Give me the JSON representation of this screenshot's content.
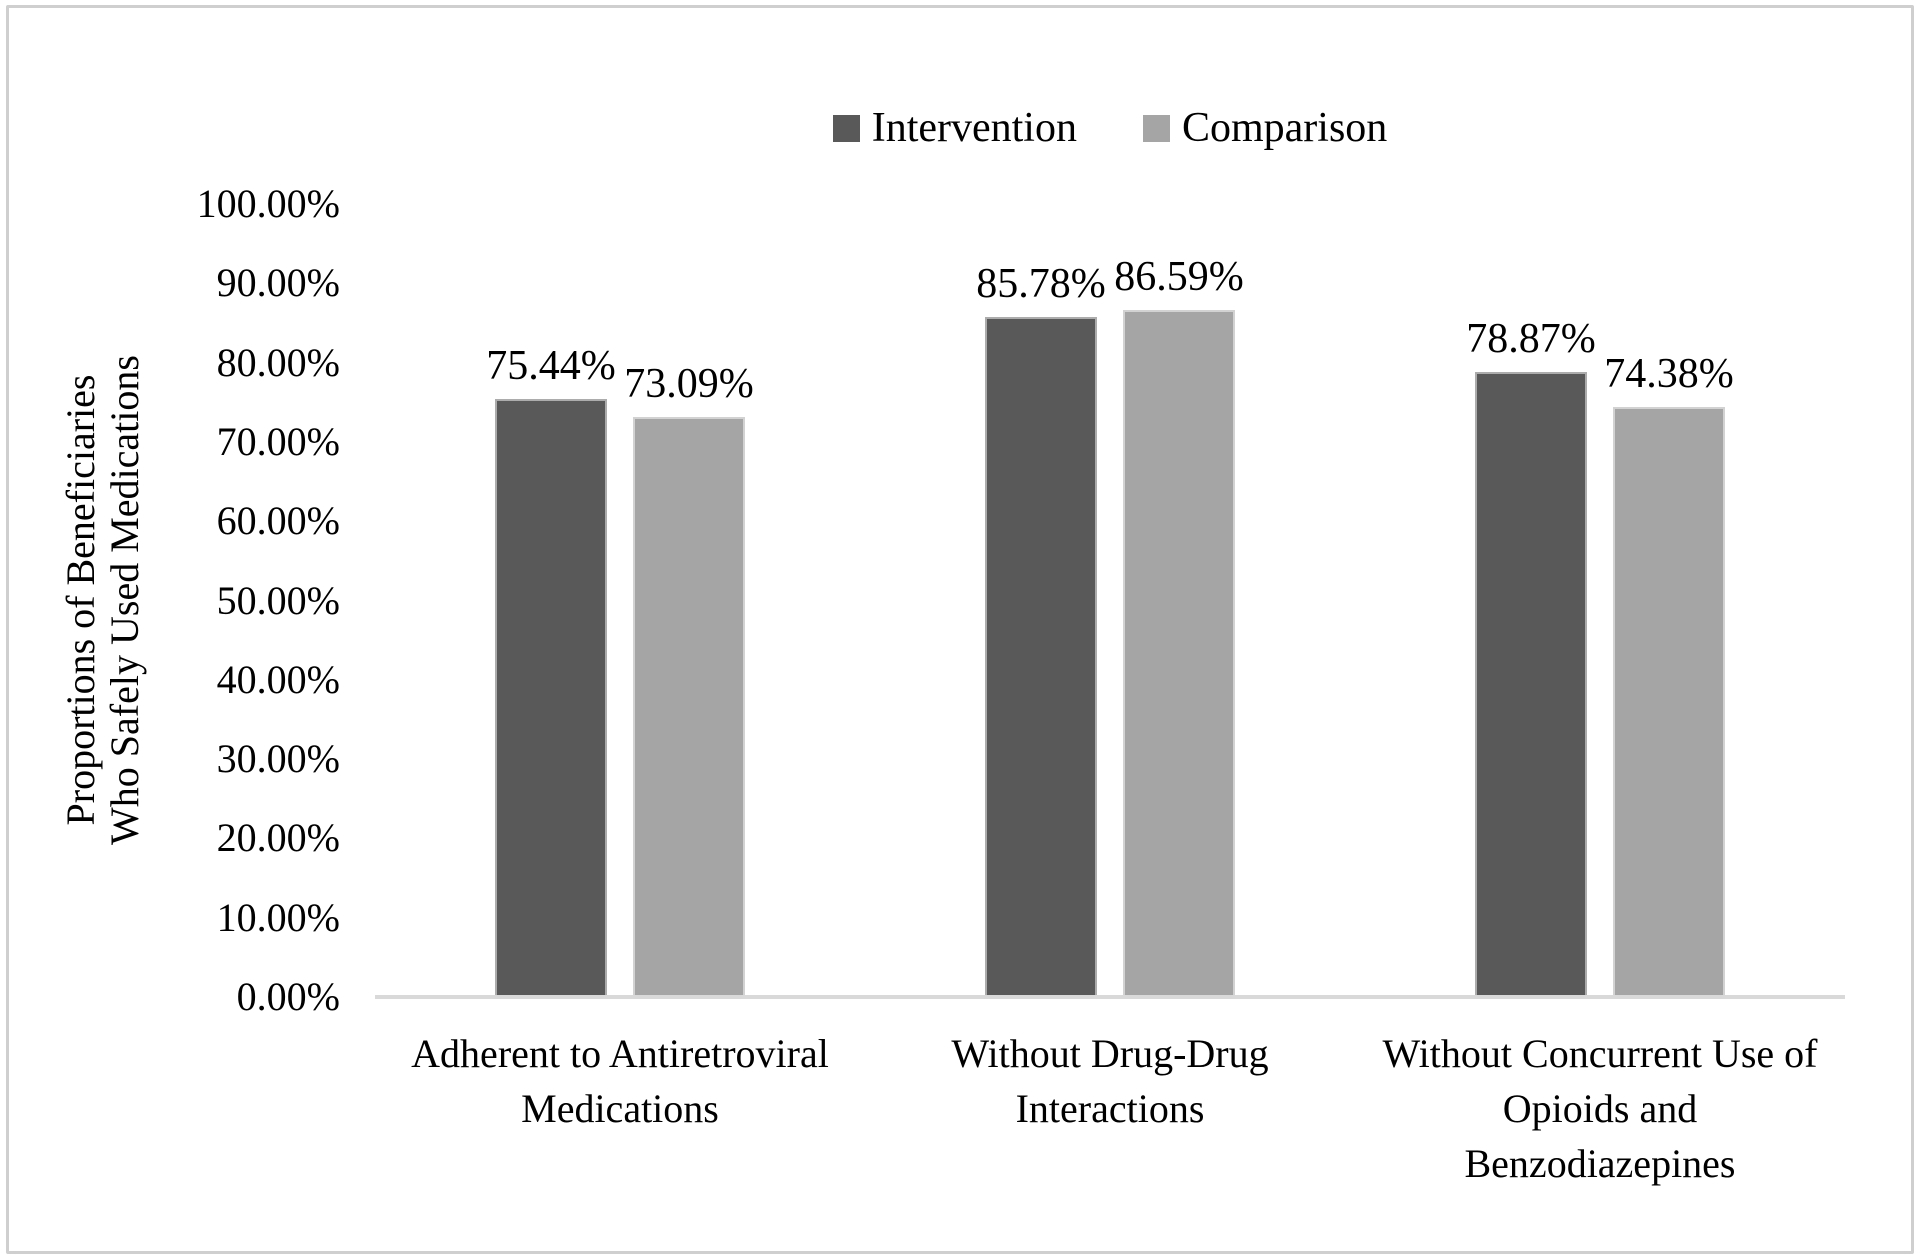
{
  "chart_data": {
    "type": "bar",
    "title": "",
    "legend_position": "top",
    "grid": false,
    "ylabel_lines": [
      "Proportions of Beneficiaries",
      "Who Safely Used Medications"
    ],
    "y_axis": {
      "min": 0,
      "max": 100,
      "step": 10,
      "tick_labels": [
        "100.00%",
        "90.00%",
        "80.00%",
        "70.00%",
        "60.00%",
        "50.00%",
        "40.00%",
        "30.00%",
        "20.00%",
        "10.00%",
        "0.00%"
      ]
    },
    "categories": [
      [
        "Adherent to Antiretroviral",
        "Medications"
      ],
      [
        "Without Drug-Drug",
        "Interactions"
      ],
      [
        "Without Concurrent Use of",
        "Opioids and",
        "Benzodiazepines"
      ]
    ],
    "series": [
      {
        "name": "Intervention",
        "color": "#595959",
        "values": [
          75.44,
          85.78,
          78.87
        ],
        "labels": [
          "75.44%",
          "85.78%",
          "78.87%"
        ]
      },
      {
        "name": "Comparison",
        "color": "#a5a5a5",
        "values": [
          73.09,
          86.59,
          74.38
        ],
        "labels": [
          "73.09%",
          "86.59%",
          "74.38%"
        ]
      }
    ]
  },
  "colors": {
    "axis_line": "#d9d9d9",
    "frame_border": "#cfcfcf",
    "background": "#ffffff",
    "text": "#000000"
  }
}
